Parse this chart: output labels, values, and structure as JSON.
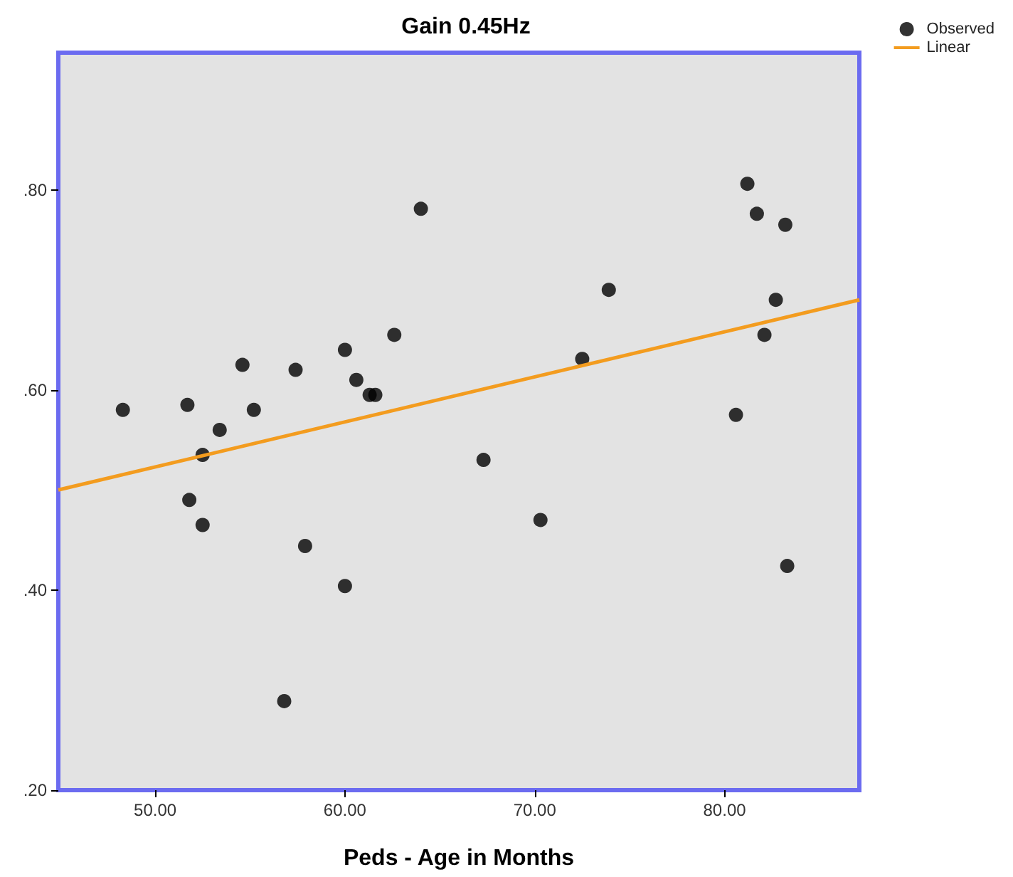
{
  "chart_data": {
    "type": "scatter",
    "title": "Gain 0.45Hz",
    "xlabel": "Peds - Age in Months",
    "xlim": [
      44.9,
      87.1
    ],
    "ylim": [
      0.2,
      0.937
    ],
    "xticks": [
      {
        "value": 50,
        "label": "50.00"
      },
      {
        "value": 60,
        "label": "60.00"
      },
      {
        "value": 70,
        "label": "70.00"
      },
      {
        "value": 80,
        "label": "80.00"
      }
    ],
    "yticks": [
      {
        "value": 0.2,
        "label": ".20"
      },
      {
        "value": 0.4,
        "label": ".40"
      },
      {
        "value": 0.6,
        "label": ".60"
      },
      {
        "value": 0.8,
        "label": ".80"
      }
    ],
    "legend": "top right",
    "grid": false,
    "marker": "circle",
    "series": [
      {
        "name": "Observed",
        "type": "scatter",
        "color": "#000000",
        "x": [
          48.3,
          51.7,
          54.6,
          57.4,
          60.0,
          62.6,
          64.0,
          53.4,
          55.2,
          60.6,
          61.3,
          61.6,
          52.5,
          51.8,
          52.5,
          57.9,
          60.0,
          56.8,
          81.2,
          81.7,
          83.2,
          73.9,
          82.7,
          82.1,
          72.5,
          80.6,
          67.3,
          70.3,
          83.3
        ],
        "values": [
          0.58,
          0.585,
          0.625,
          0.62,
          0.64,
          0.655,
          0.781,
          0.56,
          0.58,
          0.61,
          0.595,
          0.595,
          0.535,
          0.49,
          0.465,
          0.444,
          0.404,
          0.289,
          0.806,
          0.776,
          0.765,
          0.7,
          0.69,
          0.655,
          0.631,
          0.575,
          0.53,
          0.47,
          0.424
        ]
      },
      {
        "name": "Linear",
        "type": "line",
        "color": "#f39c1f",
        "marker": "none",
        "line_style": "solid",
        "x": [
          44.9,
          87.1
        ],
        "values": [
          0.5,
          0.69
        ]
      }
    ]
  }
}
